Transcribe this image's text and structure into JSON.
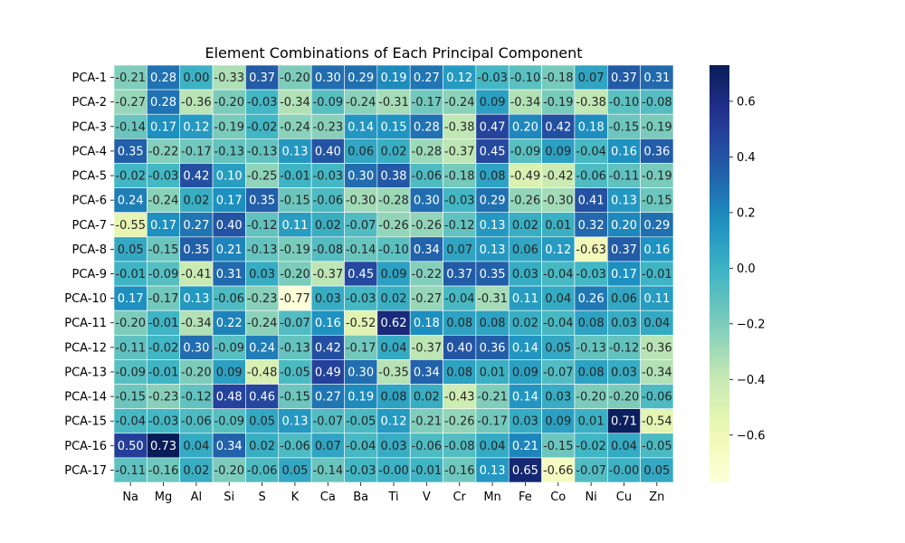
{
  "chart_data": {
    "type": "heatmap",
    "title": "Element Combinations of Each Principal Component",
    "xlabel": "",
    "ylabel": "",
    "columns": [
      "Na",
      "Mg",
      "Al",
      "Si",
      "S",
      "K",
      "Ca",
      "Ba",
      "Ti",
      "V",
      "Cr",
      "Mn",
      "Fe",
      "Co",
      "Ni",
      "Cu",
      "Zn"
    ],
    "rows": [
      "PCA-1",
      "PCA-2",
      "PCA-3",
      "PCA-4",
      "PCA-5",
      "PCA-6",
      "PCA-7",
      "PCA-8",
      "PCA-9",
      "PCA-10",
      "PCA-11",
      "PCA-12",
      "PCA-13",
      "PCA-14",
      "PCA-15",
      "PCA-16",
      "PCA-17"
    ],
    "values": [
      [
        -0.21,
        0.28,
        0.0,
        -0.33,
        0.37,
        -0.2,
        0.3,
        0.29,
        0.19,
        0.27,
        0.12,
        -0.03,
        -0.1,
        -0.18,
        0.07,
        0.37,
        0.31
      ],
      [
        -0.27,
        0.28,
        -0.36,
        -0.2,
        -0.03,
        -0.34,
        -0.09,
        -0.24,
        -0.31,
        -0.17,
        -0.24,
        0.09,
        -0.34,
        -0.19,
        -0.38,
        -0.1,
        -0.08
      ],
      [
        -0.14,
        0.17,
        0.12,
        -0.19,
        -0.02,
        -0.24,
        -0.23,
        0.14,
        0.15,
        0.28,
        -0.38,
        0.47,
        0.2,
        0.42,
        0.18,
        -0.15,
        -0.19
      ],
      [
        0.35,
        -0.22,
        -0.17,
        -0.13,
        -0.13,
        0.13,
        0.4,
        0.06,
        0.02,
        -0.28,
        -0.37,
        0.45,
        -0.09,
        0.09,
        -0.04,
        0.16,
        0.36
      ],
      [
        -0.02,
        -0.03,
        0.42,
        0.1,
        -0.25,
        -0.01,
        -0.03,
        0.3,
        0.38,
        -0.06,
        -0.18,
        0.08,
        -0.49,
        -0.42,
        -0.06,
        -0.11,
        -0.19
      ],
      [
        0.24,
        -0.24,
        0.02,
        0.17,
        0.35,
        -0.15,
        -0.06,
        -0.3,
        -0.28,
        0.3,
        -0.03,
        0.29,
        -0.26,
        -0.3,
        0.41,
        0.13,
        -0.15
      ],
      [
        -0.55,
        0.17,
        0.27,
        0.4,
        -0.12,
        0.11,
        0.02,
        -0.07,
        -0.26,
        -0.26,
        -0.12,
        0.13,
        0.02,
        0.01,
        0.32,
        0.2,
        0.29
      ],
      [
        0.05,
        -0.15,
        0.35,
        0.21,
        -0.13,
        -0.19,
        -0.08,
        -0.14,
        -0.1,
        0.34,
        0.07,
        0.13,
        0.06,
        0.12,
        -0.63,
        0.37,
        0.16
      ],
      [
        -0.01,
        -0.09,
        -0.41,
        0.31,
        0.03,
        -0.2,
        -0.37,
        0.45,
        0.09,
        -0.22,
        0.37,
        0.35,
        0.03,
        -0.04,
        -0.03,
        0.17,
        -0.01
      ],
      [
        0.17,
        -0.17,
        0.13,
        -0.06,
        -0.23,
        -0.77,
        0.03,
        -0.03,
        0.02,
        -0.27,
        -0.04,
        -0.31,
        0.11,
        0.04,
        0.26,
        0.06,
        0.11
      ],
      [
        -0.2,
        -0.01,
        -0.34,
        0.22,
        -0.24,
        -0.07,
        0.16,
        -0.52,
        0.62,
        0.18,
        0.08,
        0.08,
        0.02,
        -0.04,
        0.08,
        0.03,
        0.04
      ],
      [
        -0.11,
        -0.02,
        0.3,
        -0.09,
        0.24,
        -0.13,
        0.42,
        -0.17,
        0.04,
        -0.37,
        0.4,
        0.36,
        0.14,
        0.05,
        -0.13,
        -0.12,
        -0.36
      ],
      [
        -0.09,
        -0.01,
        -0.2,
        0.09,
        -0.48,
        -0.05,
        0.49,
        0.3,
        -0.35,
        0.34,
        0.08,
        0.01,
        0.09,
        -0.07,
        0.08,
        0.03,
        -0.34
      ],
      [
        -0.15,
        -0.23,
        -0.12,
        0.48,
        0.46,
        -0.15,
        0.27,
        0.19,
        0.08,
        0.02,
        -0.43,
        -0.21,
        0.14,
        0.03,
        -0.2,
        -0.2,
        -0.06
      ],
      [
        -0.04,
        -0.03,
        -0.06,
        -0.09,
        0.05,
        0.13,
        -0.07,
        -0.05,
        0.12,
        -0.21,
        -0.26,
        -0.17,
        0.03,
        0.09,
        0.01,
        0.71,
        -0.54
      ],
      [
        0.5,
        0.73,
        0.04,
        0.34,
        0.02,
        -0.06,
        0.07,
        -0.04,
        0.03,
        -0.06,
        -0.08,
        0.04,
        0.21,
        -0.15,
        -0.02,
        0.04,
        -0.05
      ],
      [
        -0.11,
        -0.16,
        0.02,
        -0.2,
        -0.06,
        0.05,
        -0.14,
        -0.03,
        -0.0,
        -0.01,
        -0.16,
        0.13,
        0.65,
        -0.66,
        -0.07,
        -0.0,
        0.05
      ]
    ],
    "value_range": [
      -0.77,
      0.73
    ],
    "colormap": "YlGnBu",
    "colorbar_ticks": [
      0.6,
      0.4,
      0.2,
      0.0,
      -0.2,
      -0.4,
      -0.6
    ],
    "colorbar_tick_labels": [
      "0.6",
      "0.4",
      "0.2",
      "0.0",
      "−0.2",
      "−0.4",
      "−0.6"
    ],
    "annotations": true,
    "annotation_format": "2 decimals",
    "cell_line_color": "#ffffff",
    "legend": "colorbar-right"
  }
}
